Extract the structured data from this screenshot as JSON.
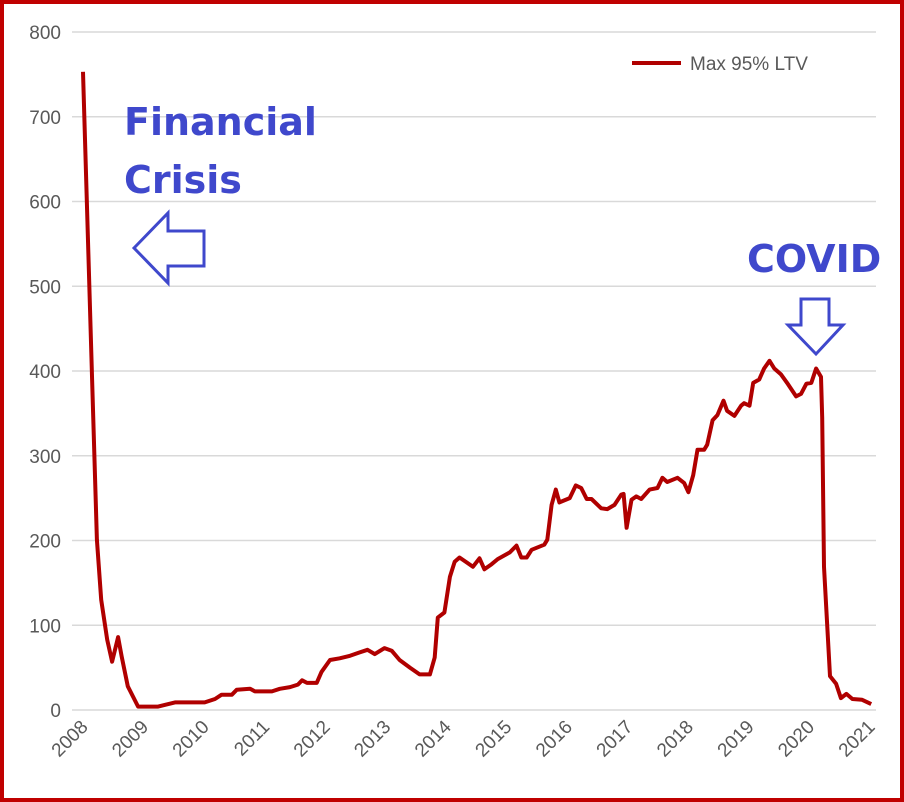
{
  "chart_data": {
    "type": "line",
    "title": "",
    "xlabel": "",
    "ylabel": "",
    "xlim": [
      2008,
      2021
    ],
    "ylim": [
      0,
      800
    ],
    "grid": true,
    "legend_position": "top-right",
    "x_ticks": [
      "2008",
      "2009",
      "2010",
      "2011",
      "2012",
      "2013",
      "2014",
      "2015",
      "2016",
      "2017",
      "2018",
      "2019",
      "2020",
      "2021"
    ],
    "y_ticks": [
      "0",
      "100",
      "200",
      "300",
      "400",
      "500",
      "600",
      "700",
      "800"
    ],
    "series": [
      {
        "name": "Max 95% LTV",
        "color": "#b00000",
        "x": [
          2008.0,
          2008.15,
          2008.23,
          2008.3,
          2008.4,
          2008.48,
          2008.58,
          2008.64,
          2008.74,
          2008.91,
          2009.24,
          2009.35,
          2009.52,
          2010.01,
          2010.18,
          2010.29,
          2010.46,
          2010.54,
          2010.76,
          2010.84,
          2011.12,
          2011.25,
          2011.42,
          2011.55,
          2011.62,
          2011.7,
          2011.86,
          2011.94,
          2012.08,
          2012.24,
          2012.41,
          2012.57,
          2012.7,
          2012.82,
          2012.98,
          2013.1,
          2013.23,
          2013.4,
          2013.56,
          2013.73,
          2013.81,
          2013.86,
          2013.97,
          2014.06,
          2014.14,
          2014.22,
          2014.34,
          2014.44,
          2014.55,
          2014.63,
          2014.75,
          2014.85,
          2015.05,
          2015.16,
          2015.24,
          2015.33,
          2015.41,
          2015.62,
          2015.67,
          2015.74,
          2015.81,
          2015.87,
          2016.04,
          2016.14,
          2016.23,
          2016.32,
          2016.4,
          2016.56,
          2016.66,
          2016.78,
          2016.89,
          2016.93,
          2016.98,
          2017.06,
          2017.14,
          2017.22,
          2017.36,
          2017.49,
          2017.57,
          2017.65,
          2017.82,
          2017.93,
          2018.0,
          2018.08,
          2018.15,
          2018.26,
          2018.31,
          2018.4,
          2018.48,
          2018.58,
          2018.64,
          2018.76,
          2018.87,
          2018.92,
          2019.01,
          2019.07,
          2019.17,
          2019.25,
          2019.34,
          2019.42,
          2019.53,
          2019.63,
          2019.78,
          2019.86,
          2019.95,
          2020.03,
          2020.11,
          2020.19,
          2020.21,
          2020.24,
          2020.34,
          2020.44,
          2020.52,
          2020.61,
          2020.71,
          2020.87,
          2021.02
        ],
        "y": [
          753,
          390,
          201,
          130,
          83,
          57,
          86,
          63,
          28,
          4,
          4,
          6,
          9,
          9,
          13,
          18,
          18,
          24,
          25,
          22,
          22,
          25,
          27,
          30,
          35,
          32,
          32,
          45,
          59,
          61,
          64,
          68,
          71,
          66,
          73,
          70,
          59,
          50,
          42,
          42,
          62,
          109,
          115,
          157,
          175,
          180,
          174,
          169,
          179,
          166,
          172,
          178,
          186,
          194,
          180,
          180,
          189,
          195,
          201,
          242,
          260,
          245,
          250,
          265,
          262,
          249,
          249,
          238,
          237,
          242,
          254,
          255,
          215,
          248,
          252,
          249,
          260,
          262,
          274,
          269,
          274,
          268,
          257,
          277,
          307,
          307,
          313,
          342,
          348,
          365,
          353,
          347,
          359,
          362,
          359,
          386,
          390,
          403,
          412,
          403,
          396,
          386,
          370,
          373,
          385,
          386,
          403,
          393,
          345,
          169,
          40,
          31,
          14,
          19,
          13,
          12,
          7
        ]
      }
    ],
    "annotations": {
      "financial_line1": "Financial",
      "financial_line2": "Crisis",
      "covid": "COVID"
    },
    "annotation_color": "#3f48cc"
  }
}
